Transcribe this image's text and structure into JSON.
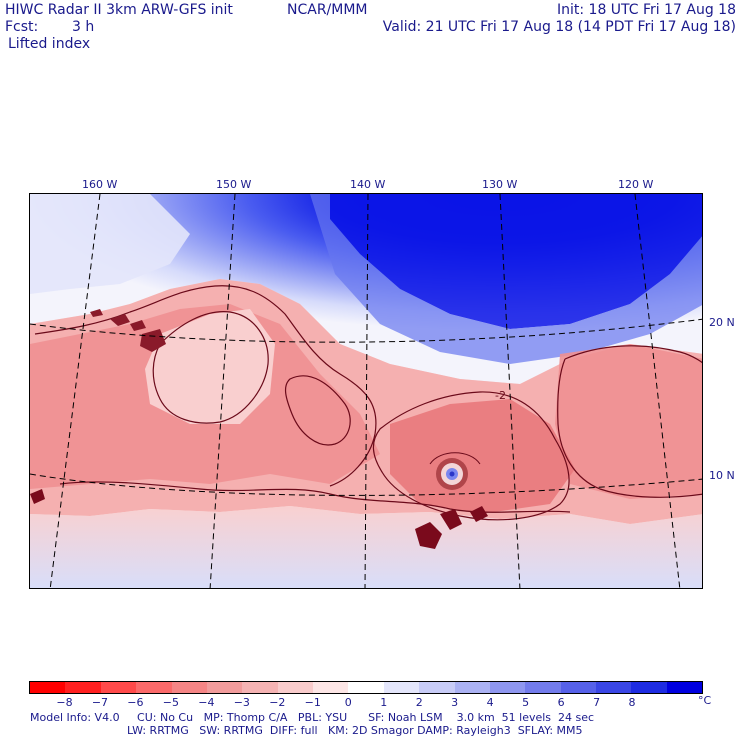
{
  "header": {
    "model_title": "HIWC Radar II 3km ARW-GFS init",
    "org": "NCAR/MMM",
    "init": "Init: 18 UTC Fri 17 Aug 18",
    "fcst_label": "Fcst:",
    "fcst_value": "3 h",
    "valid": "Valid: 21 UTC Fri 17 Aug 18 (14 PDT Fri 17 Aug 18)",
    "field": "Lifted index"
  },
  "map": {
    "lon_labels": [
      "160 W",
      "150 W",
      "140 W",
      "130 W",
      "120 W"
    ],
    "lat_labels": [
      "20 N",
      "10 N"
    ],
    "contour_label": "-2",
    "colors": {
      "deep_blue": "#0a14e6",
      "mid_blue": "#4a5cf0",
      "light_blue": "#c8d0fa",
      "white": "#f4f4fc",
      "light_red": "#f9c8c8",
      "mid_red": "#f2989a",
      "dark_red": "#e06468",
      "contour": "#6b0a1a"
    }
  },
  "colorbar": {
    "colors": [
      "#ff0000",
      "#ff2020",
      "#ff4a4a",
      "#fb6a6a",
      "#f58585",
      "#f29c9c",
      "#f5b3b3",
      "#f9cccc",
      "#fde6e6",
      "#ffffff",
      "#e4e6fb",
      "#c8ccf7",
      "#abb2f3",
      "#8f97f0",
      "#737cec",
      "#5661e9",
      "#3a46e5",
      "#1e2ce2",
      "#0000e0"
    ],
    "ticks": [
      "−8",
      "−7",
      "−6",
      "−5",
      "−4",
      "−3",
      "−2",
      "−1",
      "0",
      "1",
      "2",
      "3",
      "4",
      "5",
      "6",
      "7",
      "8"
    ],
    "unit": "°C"
  },
  "model_info": {
    "line1": "Model Info: V4.0     CU: No Cu   MP: Thomp C/A   PBL: YSU      SF: Noah LSM    3.0 km  51 levels  24 sec",
    "line2": "LW: RRTMG   SW: RRTMG  DIFF: full   KM: 2D Smagor DAMP: Rayleigh3  SFLAY: MM5"
  }
}
